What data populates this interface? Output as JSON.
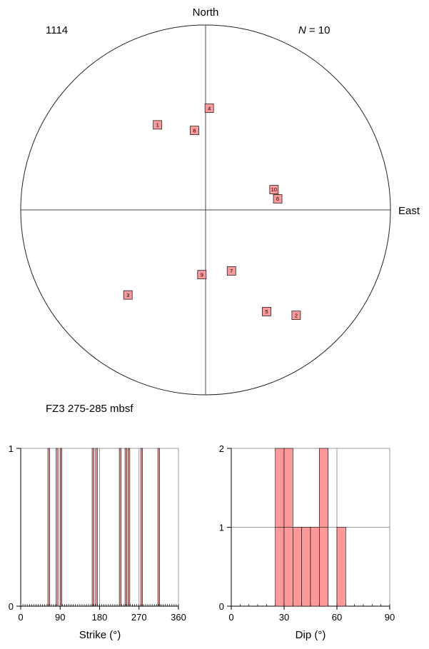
{
  "chart_data": [
    {
      "type": "scatter",
      "projection": "stereonet",
      "site_label": "1114",
      "n_label_prefix": "N",
      "n_label_value": "= 10",
      "north_label": "North",
      "east_label": "East",
      "footer_label": "FZ3 275-285 mbsf",
      "marker_color": "#ff9999",
      "points": [
        {
          "label": "1",
          "x": -0.26,
          "y": 0.46
        },
        {
          "label": "2",
          "x": 0.49,
          "y": -0.57
        },
        {
          "label": "3",
          "x": -0.42,
          "y": -0.46
        },
        {
          "label": "4",
          "x": 0.02,
          "y": 0.55
        },
        {
          "label": "5",
          "x": 0.33,
          "y": -0.55
        },
        {
          "label": "6",
          "x": 0.39,
          "y": 0.06
        },
        {
          "label": "7",
          "x": 0.14,
          "y": -0.33
        },
        {
          "label": "8",
          "x": -0.06,
          "y": 0.43
        },
        {
          "label": "9",
          "x": -0.02,
          "y": -0.35
        },
        {
          "label": "10",
          "x": 0.37,
          "y": 0.11
        }
      ]
    },
    {
      "type": "bar",
      "xlabel": "Strike (°)",
      "xlim": [
        0,
        360
      ],
      "ylim": [
        0,
        1
      ],
      "xticks": [
        0,
        90,
        180,
        270,
        360
      ],
      "yticks": [
        0,
        1
      ],
      "bar_width": 4,
      "bar_color": "#ff9999",
      "bins": [
        {
          "x": 62,
          "value": 1
        },
        {
          "x": 81,
          "value": 1
        },
        {
          "x": 90,
          "value": 1
        },
        {
          "x": 163,
          "value": 1
        },
        {
          "x": 171,
          "value": 1
        },
        {
          "x": 225,
          "value": 1
        },
        {
          "x": 238,
          "value": 1
        },
        {
          "x": 245,
          "value": 1
        },
        {
          "x": 274,
          "value": 1
        },
        {
          "x": 313,
          "value": 1
        }
      ]
    },
    {
      "type": "bar",
      "xlabel": "Dip (°)",
      "xlim": [
        0,
        90
      ],
      "ylim": [
        0,
        2
      ],
      "xticks": [
        0,
        30,
        60,
        90
      ],
      "yticks": [
        0,
        1,
        2
      ],
      "bar_width": 5,
      "bar_color": "#ff9999",
      "bins": [
        {
          "x": 25,
          "value": 2
        },
        {
          "x": 30,
          "value": 2
        },
        {
          "x": 35,
          "value": 1
        },
        {
          "x": 40,
          "value": 1
        },
        {
          "x": 45,
          "value": 1
        },
        {
          "x": 50,
          "value": 2
        },
        {
          "x": 60,
          "value": 1
        }
      ]
    }
  ]
}
